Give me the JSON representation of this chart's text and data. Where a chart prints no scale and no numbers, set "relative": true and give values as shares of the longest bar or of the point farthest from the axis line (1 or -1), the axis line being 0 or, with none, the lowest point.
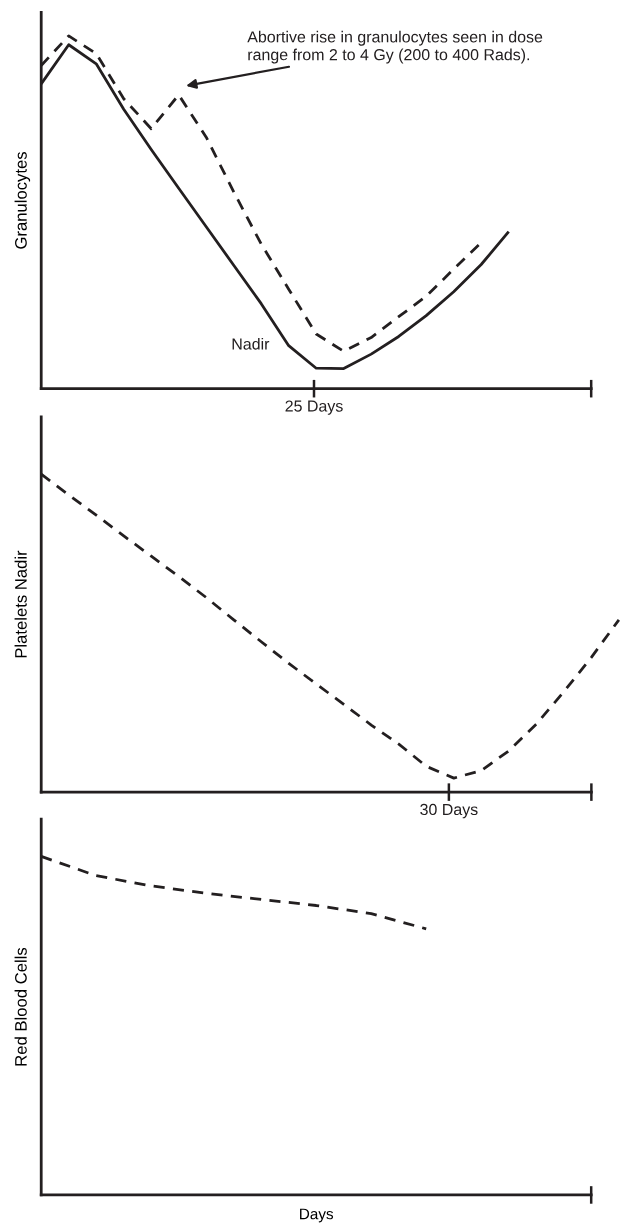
{
  "chart_data": [
    {
      "type": "line",
      "relative": true,
      "ylabel": "Granulocytes",
      "categories": [
        null,
        null,
        null,
        null,
        null,
        null,
        null,
        null,
        null,
        null,
        null,
        null,
        null,
        null,
        null,
        null,
        null,
        null,
        null,
        null,
        null
      ],
      "series": [
        {
          "color": "#231f20",
          "line_style": "solid",
          "values": [
            0.864,
            0.975,
            0.921,
            0.792,
            0.678,
            0.568,
            0.459,
            0.35,
            0.241,
            0.122,
            0.058,
            0.057,
            0.098,
            0.148,
            0.207,
            0.275,
            0.352,
            0.445,
            null,
            null,
            null
          ]
        },
        {
          "color": "#231f20",
          "line_style": "dashed",
          "values": [
            0.916,
            1.0,
            0.95,
            0.822,
            0.737,
            0.833,
            0.713,
            0.558,
            0.41,
            0.282,
            0.155,
            0.106,
            0.145,
            0.204,
            0.262,
            0.339,
            0.414,
            null,
            null,
            null,
            null
          ]
        }
      ],
      "annotations": [
        "Abortive rise in granulocytes seen in dose\nrange from 2 to 4 Gy (200 to 400 Rads).",
        "Nadir",
        "25 Days"
      ]
    },
    {
      "type": "line",
      "relative": true,
      "ylabel": "Platelets Nadir",
      "categories": [
        null,
        null,
        null,
        null,
        null,
        null,
        null,
        null,
        null,
        null,
        null,
        null,
        null,
        null,
        null,
        null,
        null,
        null,
        null,
        null,
        null,
        null
      ],
      "series": [
        {
          "color": "#231f20",
          "line_style": "dashed",
          "values": [
            1.0,
            0.935,
            0.871,
            0.806,
            0.742,
            0.678,
            0.612,
            0.542,
            0.473,
            0.405,
            0.34,
            0.276,
            0.211,
            0.151,
            0.081,
            0.044,
            0.068,
            0.13,
            0.214,
            0.316,
            0.424,
            0.542
          ]
        }
      ],
      "annotations": [
        "30 Days"
      ]
    },
    {
      "type": "line",
      "relative": true,
      "ylabel": "Red Blood Cells",
      "xlabel": "Days",
      "categories": [
        null,
        null,
        null,
        null,
        null,
        null,
        null,
        null,
        null,
        null,
        null
      ],
      "series": [
        {
          "color": "#231f20",
          "line_style": "dashed",
          "values": [
            1.0,
            0.943,
            0.913,
            0.891,
            0.873,
            0.855,
            0.831,
            0.786,
            null,
            null,
            null
          ]
        }
      ]
    }
  ]
}
